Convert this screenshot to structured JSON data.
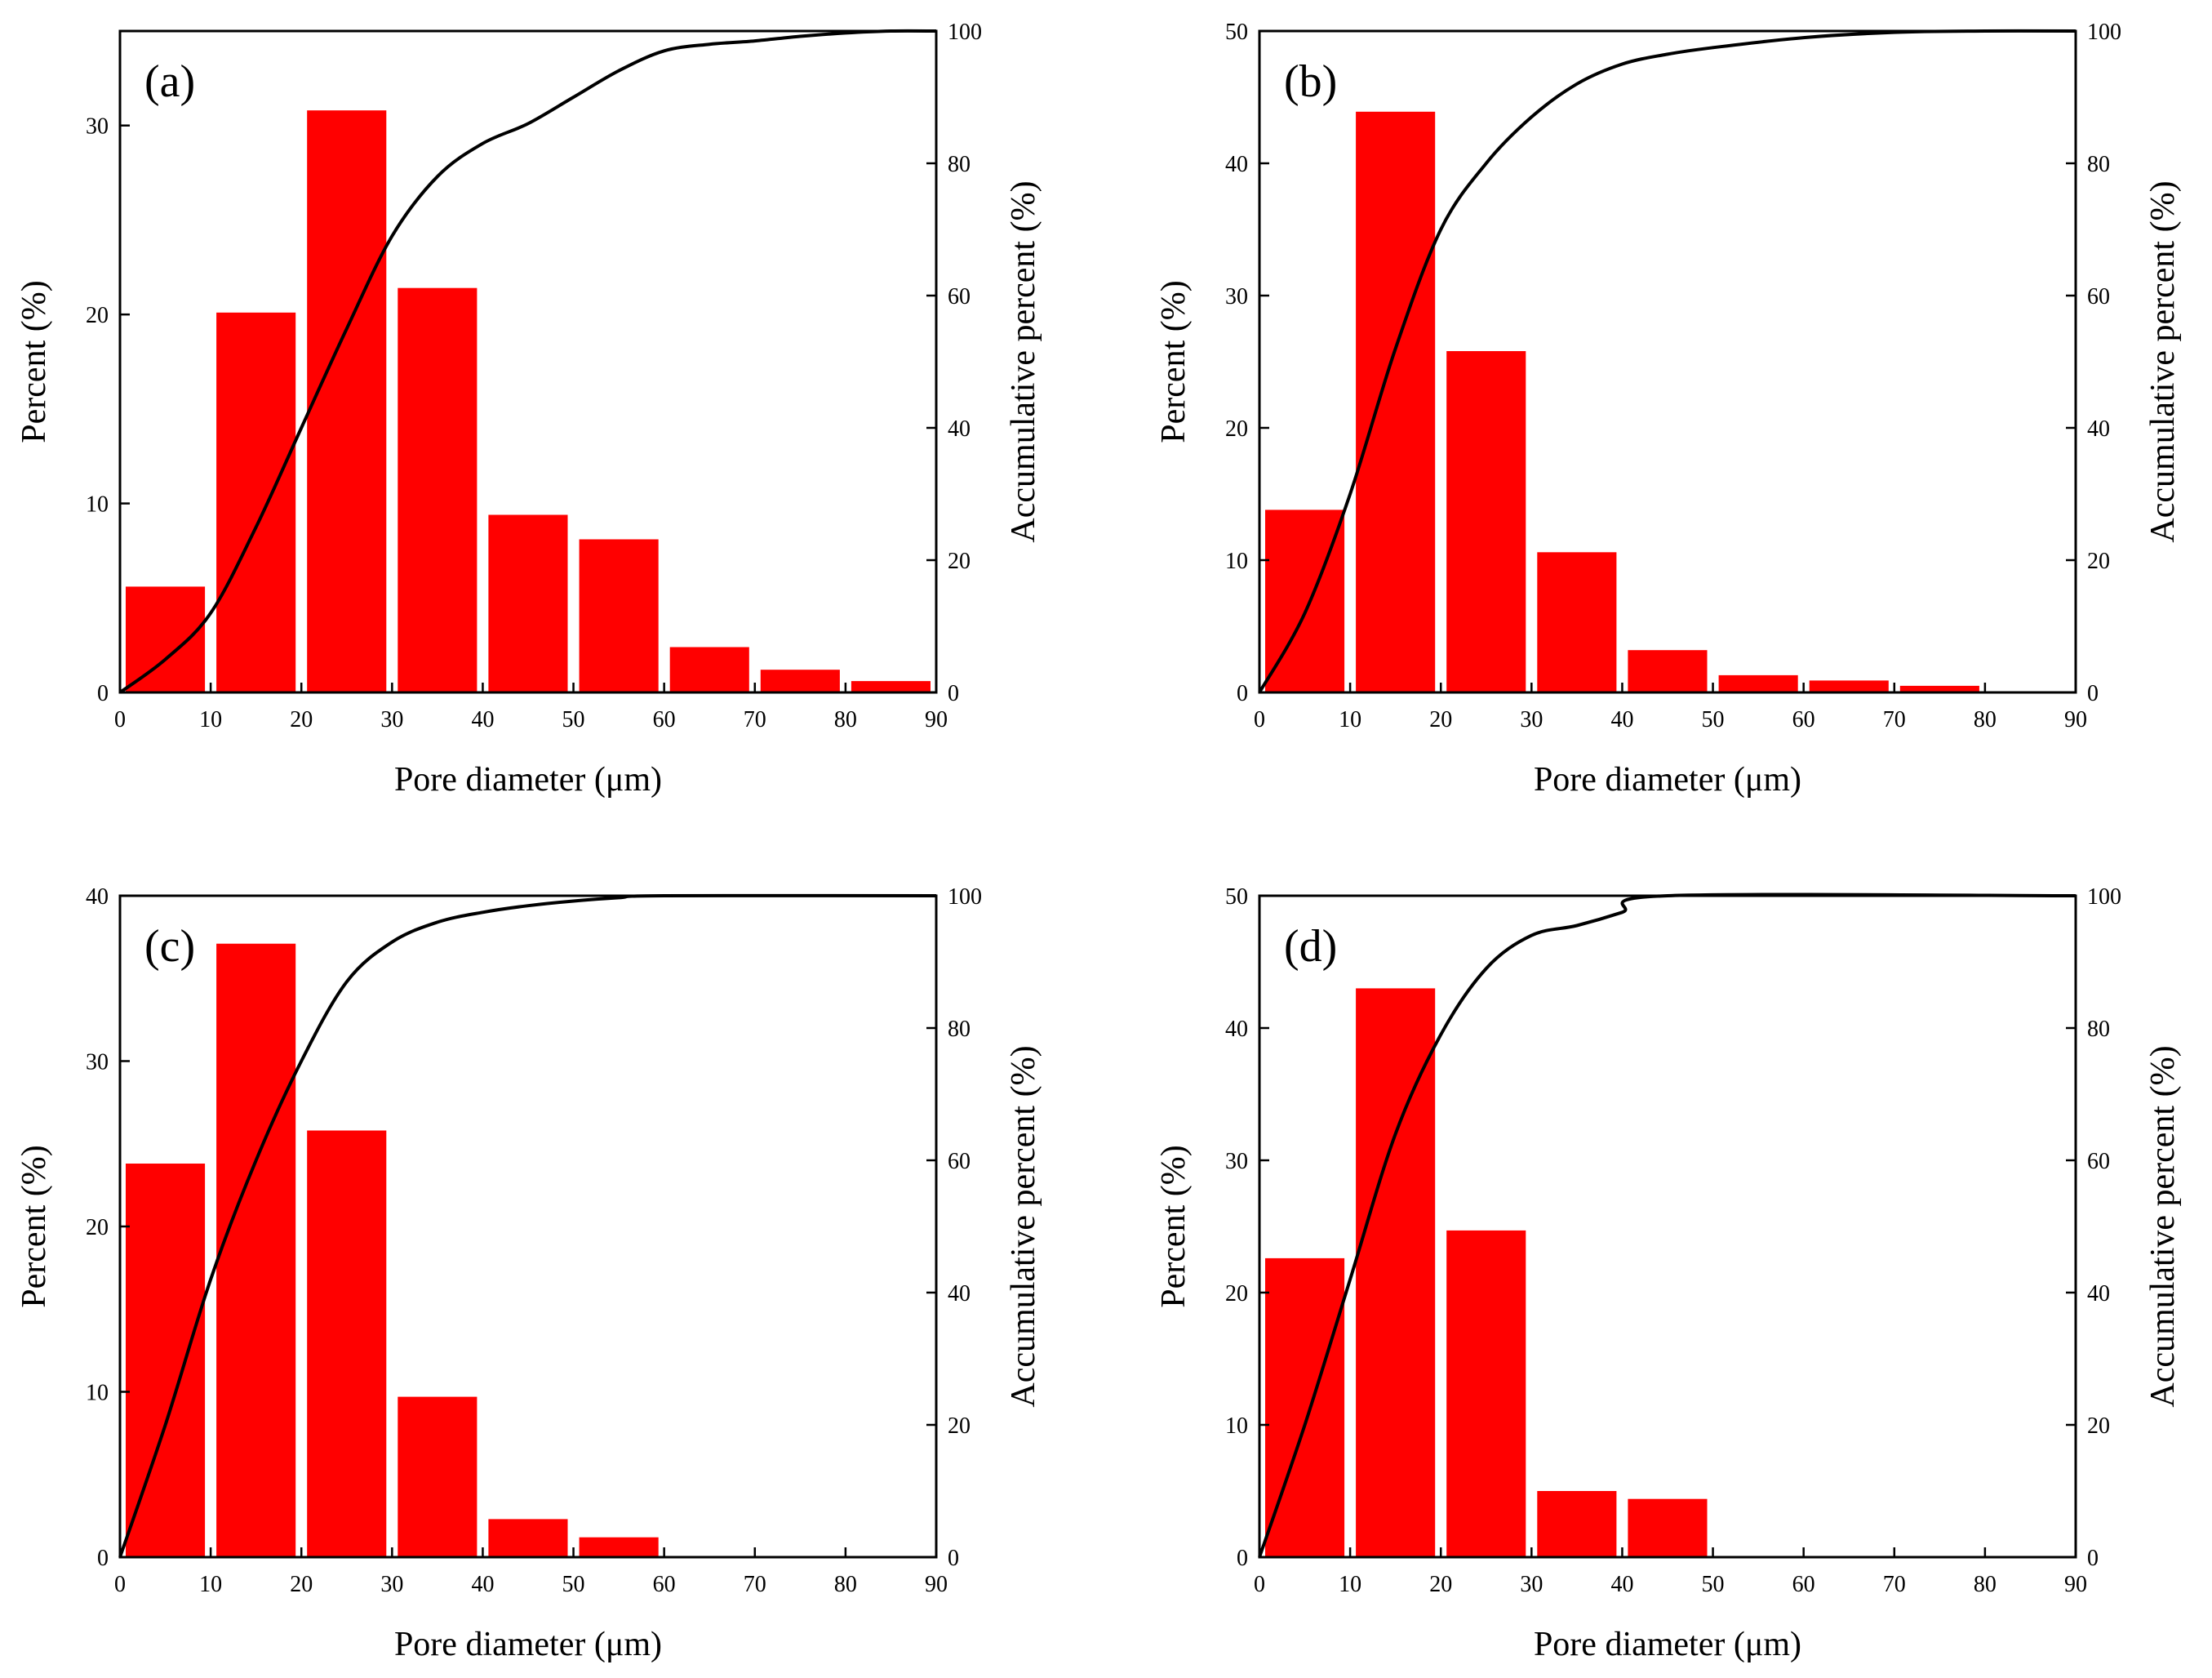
{
  "chart_data": [
    {
      "type": "bar",
      "panel_label": "(a)",
      "xlabel": "Pore diameter (μm)",
      "ylabel": "Percent (%)",
      "y2label": "Accumulative percent (%)",
      "xlim": [
        0,
        90
      ],
      "ylim": [
        0,
        35
      ],
      "y2lim": [
        0,
        100
      ],
      "xticks": [
        "0",
        "10",
        "20",
        "30",
        "40",
        "50",
        "60",
        "70",
        "80",
        "90"
      ],
      "yticks": [
        "0",
        "10",
        "20",
        "30"
      ],
      "y2ticks": [
        "0",
        "20",
        "40",
        "60",
        "80",
        "100"
      ],
      "bar_color": "#ff0000",
      "bins": [
        [
          0,
          10
        ],
        [
          10,
          20
        ],
        [
          20,
          30
        ],
        [
          30,
          40
        ],
        [
          40,
          50
        ],
        [
          50,
          60
        ],
        [
          60,
          70
        ],
        [
          70,
          80
        ],
        [
          80,
          90
        ]
      ],
      "values": [
        5.6,
        20.1,
        30.8,
        21.4,
        9.4,
        8.1,
        2.4,
        1.2,
        0.6
      ],
      "cumulative": {
        "x": [
          0,
          5,
          10,
          15,
          20,
          25,
          30,
          35,
          40,
          45,
          50,
          55,
          60,
          65,
          70,
          75,
          80,
          85,
          90
        ],
        "y": [
          0,
          5,
          12,
          25,
          40,
          55,
          69,
          78,
          83,
          86,
          90,
          94,
          97,
          98,
          98.5,
          99.2,
          99.7,
          100,
          100
        ]
      },
      "grid": false,
      "legend": "none"
    },
    {
      "type": "bar",
      "panel_label": "(b)",
      "xlabel": "Pore diameter (μm)",
      "ylabel": "Percent (%)",
      "y2label": "Accumulative percent (%)",
      "xlim": [
        0,
        90
      ],
      "ylim": [
        0,
        50
      ],
      "y2lim": [
        0,
        100
      ],
      "xticks": [
        "0",
        "10",
        "20",
        "30",
        "40",
        "50",
        "60",
        "70",
        "80",
        "90"
      ],
      "yticks": [
        "0",
        "10",
        "20",
        "30",
        "40",
        "50"
      ],
      "y2ticks": [
        "0",
        "20",
        "40",
        "60",
        "80",
        "100"
      ],
      "bar_color": "#ff0000",
      "bins": [
        [
          0,
          10
        ],
        [
          10,
          20
        ],
        [
          20,
          30
        ],
        [
          30,
          40
        ],
        [
          40,
          50
        ],
        [
          50,
          60
        ],
        [
          60,
          70
        ],
        [
          70,
          80
        ]
      ],
      "values": [
        13.8,
        43.9,
        25.8,
        10.6,
        3.2,
        1.3,
        0.9,
        0.5
      ],
      "cumulative": {
        "x": [
          0,
          5,
          10,
          15,
          20,
          25,
          30,
          35,
          40,
          45,
          50,
          60,
          70,
          80,
          90
        ],
        "y": [
          0,
          12,
          30,
          52,
          70,
          80,
          87,
          92,
          95,
          96.5,
          97.5,
          99,
          99.8,
          100,
          100
        ]
      },
      "grid": false,
      "legend": "none"
    },
    {
      "type": "bar",
      "panel_label": "(c)",
      "xlabel": "Pore diameter (μm)",
      "ylabel": "Percent (%)",
      "y2label": "Accumulative percent (%)",
      "xlim": [
        0,
        90
      ],
      "ylim": [
        0,
        40
      ],
      "y2lim": [
        0,
        100
      ],
      "xticks": [
        "0",
        "10",
        "20",
        "30",
        "40",
        "50",
        "60",
        "70",
        "80",
        "90"
      ],
      "yticks": [
        "0",
        "10",
        "20",
        "30",
        "40"
      ],
      "y2ticks": [
        "0",
        "20",
        "40",
        "60",
        "80",
        "100"
      ],
      "bar_color": "#ff0000",
      "bins": [
        [
          0,
          10
        ],
        [
          10,
          20
        ],
        [
          20,
          30
        ],
        [
          30,
          40
        ],
        [
          40,
          50
        ],
        [
          50,
          60
        ]
      ],
      "values": [
        23.8,
        37.1,
        25.8,
        9.7,
        2.3,
        1.2
      ],
      "cumulative": {
        "x": [
          0,
          5,
          10,
          15,
          20,
          25,
          30,
          35,
          40,
          45,
          50,
          55,
          60,
          90
        ],
        "y": [
          0,
          20,
          42,
          60,
          75,
          87,
          93,
          96,
          97.5,
          98.5,
          99.2,
          99.7,
          100,
          100
        ]
      },
      "grid": false,
      "legend": "none"
    },
    {
      "type": "bar",
      "panel_label": "(d)",
      "xlabel": "Pore diameter (μm)",
      "ylabel": "Percent (%)",
      "y2label": "Accumulative percent (%)",
      "xlim": [
        0,
        90
      ],
      "ylim": [
        0,
        50
      ],
      "y2lim": [
        0,
        100
      ],
      "xticks": [
        "0",
        "10",
        "20",
        "30",
        "40",
        "50",
        "60",
        "70",
        "80",
        "90"
      ],
      "yticks": [
        "0",
        "10",
        "20",
        "30",
        "40",
        "50"
      ],
      "y2ticks": [
        "0",
        "20",
        "40",
        "60",
        "80",
        "100"
      ],
      "bar_color": "#ff0000",
      "bins": [
        [
          0,
          10
        ],
        [
          10,
          20
        ],
        [
          20,
          30
        ],
        [
          30,
          40
        ],
        [
          40,
          50
        ]
      ],
      "values": [
        22.6,
        43.0,
        24.7,
        5.0,
        4.4
      ],
      "cumulative": {
        "x": [
          0,
          5,
          10,
          15,
          20,
          25,
          30,
          35,
          40,
          45,
          90
        ],
        "y": [
          0,
          20,
          42,
          64,
          79,
          89,
          94,
          95.5,
          97.5,
          100,
          100
        ]
      },
      "grid": false,
      "legend": "none"
    }
  ]
}
